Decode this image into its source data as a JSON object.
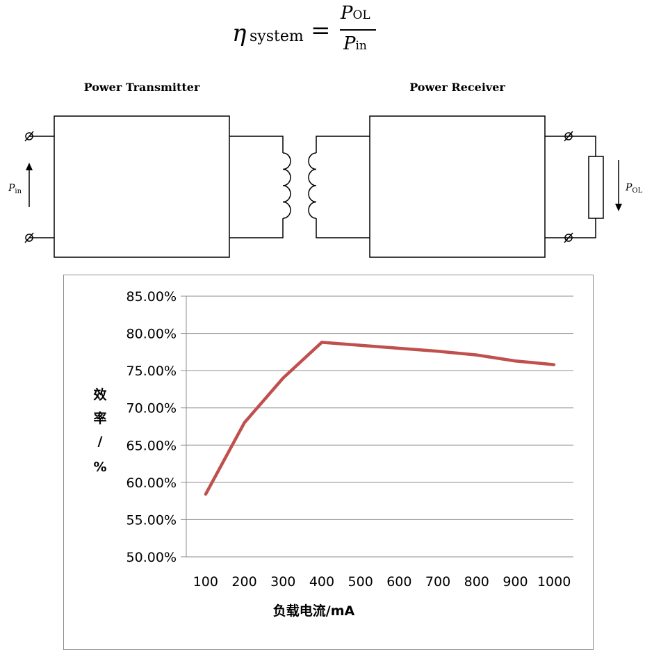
{
  "formula": {
    "lhs_symbol": "η",
    "lhs_subscript": "system",
    "equals": "=",
    "numerator": "P",
    "numerator_subscript": "OL",
    "denominator": "P",
    "denominator_subscript": "in"
  },
  "diagram": {
    "transmitter_label": "Power Transmitter",
    "receiver_label": "Power Receiver",
    "input_power": "P",
    "input_power_subscript": "in",
    "output_power": "P",
    "output_power_subscript": "OL"
  },
  "chart_data": {
    "type": "line",
    "categories": [
      "100",
      "200",
      "300",
      "400",
      "500",
      "600",
      "700",
      "800",
      "900",
      "1000"
    ],
    "series": [
      {
        "values": [
          58.4,
          68.0,
          74.0,
          78.8,
          78.4,
          78.0,
          77.6,
          77.1,
          76.3,
          75.8
        ]
      }
    ],
    "title": "",
    "xlabel": "负载电流/mA",
    "ylabel_lines": [
      "效",
      "率",
      "/",
      "%"
    ],
    "ylim": [
      50,
      85
    ],
    "y_ticks": [
      "50.00%",
      "55.00%",
      "60.00%",
      "65.00%",
      "70.00%",
      "75.00%",
      "80.00%",
      "85.00%"
    ],
    "grid": true,
    "line_color": "#c0504d"
  }
}
